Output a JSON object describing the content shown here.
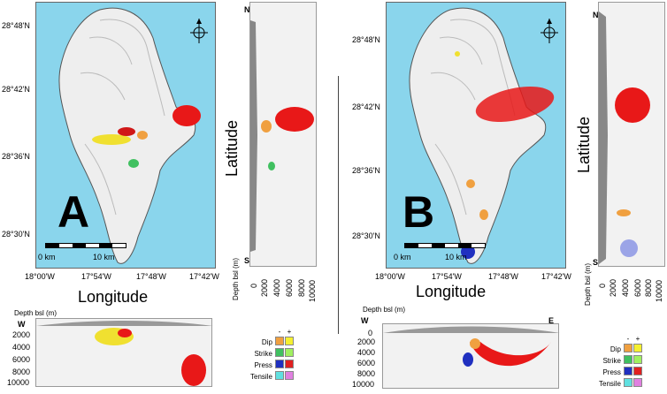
{
  "panels": [
    {
      "id": "A",
      "letter": "A",
      "lat_ticks": [
        "28°48'N",
        "28°42'N",
        "28°36'N",
        "28°30'N"
      ],
      "lon_ticks": [
        "18°00'W",
        "17°54'W",
        "17°48'W",
        "17°42'W"
      ],
      "lon_title": "Longitude",
      "lat_title": "Latitude",
      "scalebar": {
        "left": "0 km",
        "right": "10 km"
      },
      "side_n": "N",
      "side_s": "S",
      "depth_label": "Depth bsl (m)",
      "depth_ticks_x": [
        "0",
        "2000",
        "4000",
        "6000",
        "8000",
        "10000"
      ],
      "depth_ticks_y": [
        "0",
        "2000",
        "4000",
        "6000",
        "8000",
        "10000"
      ],
      "section_w": "W",
      "section_e": "E"
    },
    {
      "id": "B",
      "letter": "B",
      "lat_ticks": [
        "28°48'N",
        "28°42'N",
        "28°36'N",
        "28°30'N"
      ],
      "lon_ticks": [
        "18°00'W",
        "17°54'W",
        "17°48'W",
        "17°42'W"
      ],
      "lon_title": "Longitude",
      "lat_title": "Latitude",
      "scalebar": {
        "left": "0 km",
        "right": "10 km"
      },
      "side_n": "N",
      "side_s": "S",
      "depth_label": "Depth bsl (m)",
      "depth_ticks_x": [
        "0",
        "2000",
        "4000",
        "6000",
        "8000",
        "10000"
      ],
      "depth_ticks_y": [
        "0",
        "2000",
        "4000",
        "6000",
        "8000",
        "10000"
      ],
      "section_w": "W",
      "section_e": "E"
    }
  ],
  "legend": {
    "minus": "-",
    "plus": "+",
    "rows": [
      {
        "label": "Dip",
        "neg": "#f0a040",
        "pos": "#f5f030"
      },
      {
        "label": "Strike",
        "neg": "#40c060",
        "pos": "#a0f060"
      },
      {
        "label": "Press",
        "neg": "#2030c0",
        "pos": "#e02020"
      },
      {
        "label": "Tensile",
        "neg": "#60e0e0",
        "pos": "#e080e0"
      }
    ]
  },
  "colors": {
    "sea": "#8ad5ec",
    "island": "#eeeeee",
    "source": "#e81818"
  }
}
